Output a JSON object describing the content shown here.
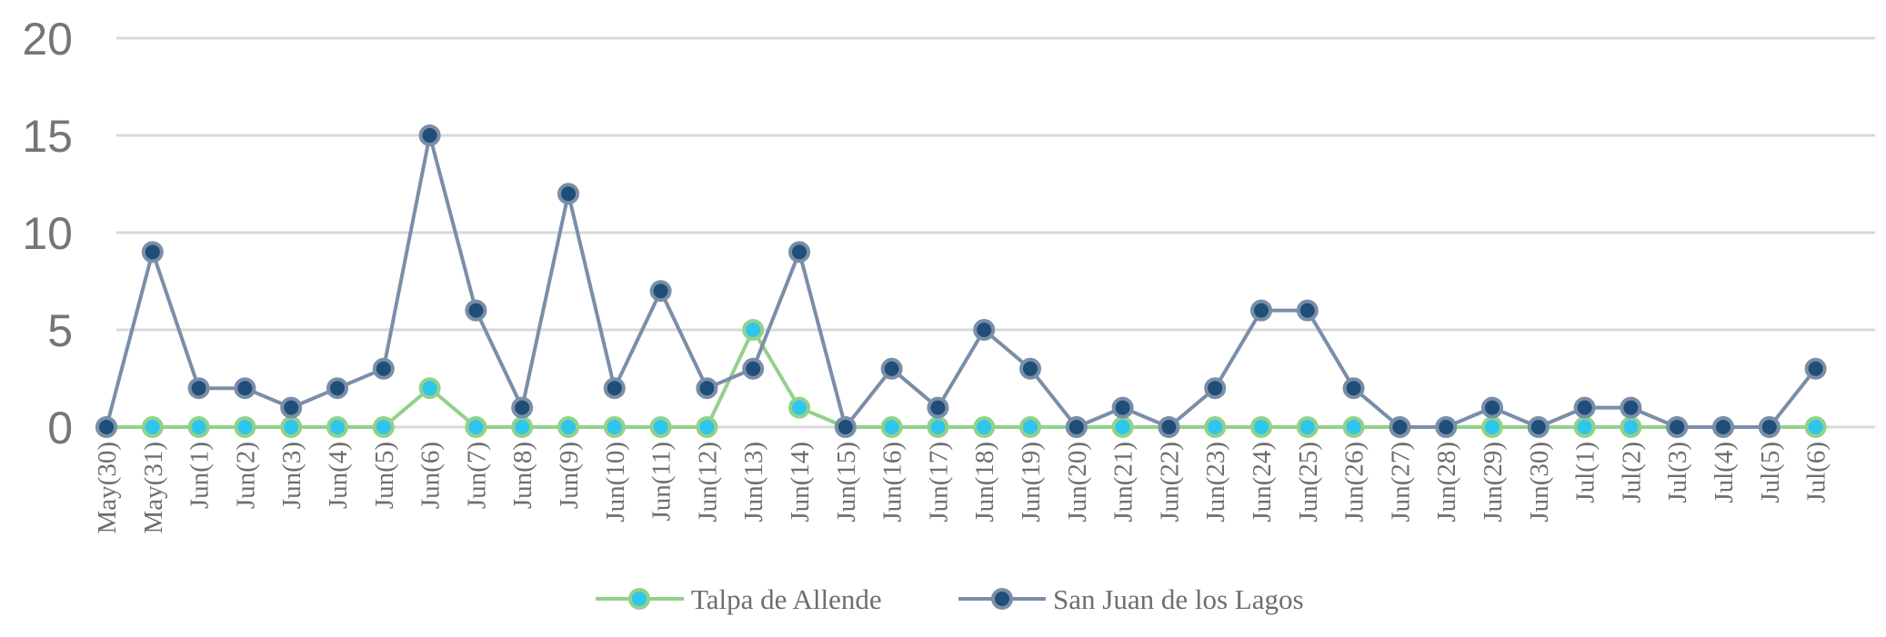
{
  "chart_data": {
    "type": "line",
    "title": "",
    "xlabel": "",
    "ylabel": "",
    "ylim": [
      0,
      20
    ],
    "yticks": [
      0,
      5,
      10,
      15,
      20
    ],
    "grid": true,
    "legend": "bottom-center",
    "categories": [
      "May(30)",
      "May(31)",
      "Jun(1)",
      "Jun(2)",
      "Jun(3)",
      "Jun(4)",
      "Jun(5)",
      "Jun(6)",
      "Jun(7)",
      "Jun(8)",
      "Jun(9)",
      "Jun(10)",
      "Jun(11)",
      "Jun(12)",
      "Jun(13)",
      "Jun(14)",
      "Jun(15)",
      "Jun(16)",
      "Jun(17)",
      "Jun(18)",
      "Jun(19)",
      "Jun(20)",
      "Jun(21)",
      "Jun(22)",
      "Jun(23)",
      "Jun(24)",
      "Jun(25)",
      "Jun(26)",
      "Jun(27)",
      "Jun(28)",
      "Jun(29)",
      "Jun(30)",
      "Jul(1)",
      "Jul(2)",
      "Jul(3)",
      "Jul(4)",
      "Jul(5)",
      "Jul(6)"
    ],
    "series": [
      {
        "name": "Talpa de Allende",
        "line_color": "#92d18b",
        "marker_fill": "#2ec6ec",
        "marker_edge": "#92d18b",
        "values": [
          0,
          0,
          0,
          0,
          0,
          0,
          0,
          2,
          0,
          0,
          0,
          0,
          0,
          0,
          5,
          1,
          0,
          0,
          0,
          0,
          0,
          0,
          0,
          0,
          0,
          0,
          0,
          0,
          0,
          0,
          0,
          0,
          0,
          0,
          0,
          0,
          0,
          0
        ]
      },
      {
        "name": "San Juan de los Lagos",
        "line_color": "#7a8ea8",
        "marker_fill": "#1f4e79",
        "marker_edge": "#7a8ea8",
        "values": [
          0,
          9,
          2,
          2,
          1,
          2,
          3,
          15,
          6,
          1,
          12,
          2,
          7,
          2,
          3,
          9,
          0,
          3,
          1,
          5,
          3,
          0,
          1,
          0,
          2,
          6,
          6,
          2,
          0,
          0,
          1,
          0,
          1,
          1,
          0,
          0,
          0,
          3
        ]
      }
    ]
  }
}
